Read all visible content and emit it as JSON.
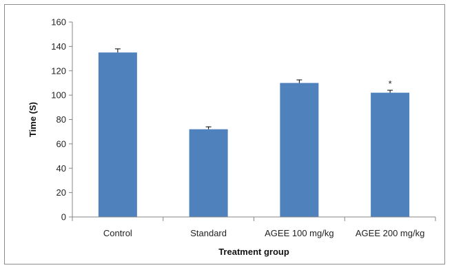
{
  "chart_data": {
    "type": "bar",
    "title": "",
    "xlabel": "Treatment group",
    "ylabel": "Time  (S)",
    "categories": [
      "Control",
      "Standard",
      "AGEE 100 mg/kg",
      "AGEE 200 mg/kg"
    ],
    "values": [
      135,
      72,
      110,
      102
    ],
    "error": [
      3,
      2,
      2.5,
      2
    ],
    "annotations": [
      "",
      "",
      "",
      "*"
    ],
    "ylim": [
      0,
      160
    ],
    "yticks": [
      0,
      20,
      40,
      60,
      80,
      100,
      120,
      140,
      160
    ],
    "grid": false,
    "legend": "none",
    "colors": {
      "bar": "#4F81BD",
      "axis": "#868686",
      "error_bar": "#000000"
    }
  }
}
